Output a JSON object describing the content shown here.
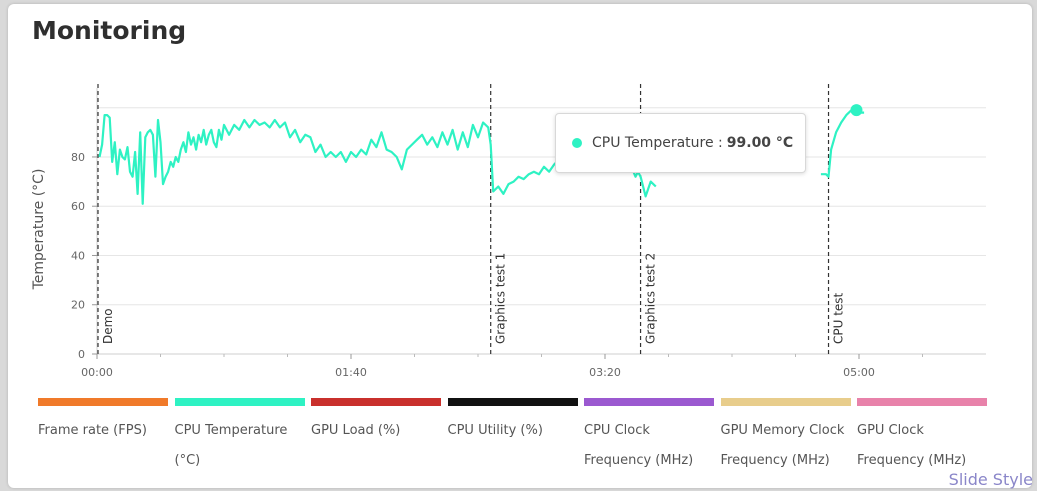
{
  "panel": {
    "title": "Monitoring"
  },
  "tooltip": {
    "label": "CPU Temperature :",
    "value": "99.00 °C",
    "color": "#2ef2c3"
  },
  "watermark": {
    "text": "Slide Style"
  },
  "legend": {
    "items": [
      {
        "label": "Frame rate (FPS)",
        "color": "#f07a2a"
      },
      {
        "label": "CPU Temperature (°C)",
        "color": "#2ef2c3"
      },
      {
        "label": "GPU Load (%)",
        "color": "#c9302c"
      },
      {
        "label": "CPU Utility (%)",
        "color": "#111111"
      },
      {
        "label": "CPU Clock Frequency (MHz)",
        "color": "#9b59d0"
      },
      {
        "label": "GPU Memory Clock Frequency (MHz)",
        "color": "#e8cd8c"
      },
      {
        "label": "GPU Clock Frequency (MHz)",
        "color": "#e882aa"
      }
    ]
  },
  "chart_data": {
    "type": "line",
    "ylabel": "Temperature (°C)",
    "xlabel": "",
    "ylim": [
      0,
      108
    ],
    "xlim": [
      0,
      350
    ],
    "y_ticks": [
      0,
      20,
      40,
      60,
      80
    ],
    "x_ticks": [
      {
        "value": 0,
        "label": "00:00"
      },
      {
        "value": 100,
        "label": "01:40"
      },
      {
        "value": 200,
        "label": "03:20"
      },
      {
        "value": 300,
        "label": "05:00"
      }
    ],
    "grid": true,
    "markers": [
      {
        "x": 0,
        "label": "Demo"
      },
      {
        "x": 155,
        "label": "Graphics test 1"
      },
      {
        "x": 214,
        "label": "Graphics test 2"
      },
      {
        "x": 288,
        "label": "CPU test"
      }
    ],
    "series": [
      {
        "name": "CPU Temperature (°C)",
        "color": "#2ef2c3",
        "points": [
          [
            1,
            80
          ],
          [
            2,
            85
          ],
          [
            3,
            97
          ],
          [
            4,
            97
          ],
          [
            5,
            96
          ],
          [
            6,
            78
          ],
          [
            7,
            86
          ],
          [
            8,
            73
          ],
          [
            9,
            83
          ],
          [
            10,
            80
          ],
          [
            11,
            79
          ],
          [
            12,
            84
          ],
          [
            13,
            74
          ],
          [
            14,
            72
          ],
          [
            15,
            82
          ],
          [
            16,
            65
          ],
          [
            17,
            90
          ],
          [
            18,
            61
          ],
          [
            19,
            88
          ],
          [
            20,
            90
          ],
          [
            21,
            91
          ],
          [
            22,
            89
          ],
          [
            23,
            72
          ],
          [
            24,
            95
          ],
          [
            25,
            86
          ],
          [
            26,
            69
          ],
          [
            27,
            72
          ],
          [
            28,
            74
          ],
          [
            29,
            78
          ],
          [
            30,
            76
          ],
          [
            31,
            80
          ],
          [
            32,
            78
          ],
          [
            33,
            83
          ],
          [
            34,
            86
          ],
          [
            35,
            82
          ],
          [
            36,
            90
          ],
          [
            37,
            85
          ],
          [
            38,
            88
          ],
          [
            39,
            83
          ],
          [
            40,
            89
          ],
          [
            41,
            86
          ],
          [
            42,
            91
          ],
          [
            43,
            85
          ],
          [
            44,
            89
          ],
          [
            45,
            91
          ],
          [
            46,
            86
          ],
          [
            47,
            84
          ],
          [
            48,
            91
          ],
          [
            49,
            87
          ],
          [
            50,
            93
          ],
          [
            52,
            89
          ],
          [
            54,
            93
          ],
          [
            56,
            91
          ],
          [
            58,
            95
          ],
          [
            60,
            92
          ],
          [
            62,
            95
          ],
          [
            64,
            93
          ],
          [
            66,
            94
          ],
          [
            68,
            92
          ],
          [
            70,
            95
          ],
          [
            72,
            92
          ],
          [
            74,
            94
          ],
          [
            76,
            88
          ],
          [
            78,
            91
          ],
          [
            80,
            86
          ],
          [
            82,
            89
          ],
          [
            84,
            88
          ],
          [
            86,
            82
          ],
          [
            88,
            85
          ],
          [
            90,
            80
          ],
          [
            92,
            82
          ],
          [
            94,
            80
          ],
          [
            96,
            82
          ],
          [
            98,
            78
          ],
          [
            100,
            82
          ],
          [
            102,
            80
          ],
          [
            104,
            83
          ],
          [
            106,
            81
          ],
          [
            108,
            87
          ],
          [
            110,
            84
          ],
          [
            112,
            90
          ],
          [
            114,
            83
          ],
          [
            116,
            82
          ],
          [
            118,
            80
          ],
          [
            120,
            75
          ],
          [
            122,
            83
          ],
          [
            124,
            85
          ],
          [
            126,
            87
          ],
          [
            128,
            89
          ],
          [
            130,
            85
          ],
          [
            132,
            88
          ],
          [
            134,
            84
          ],
          [
            136,
            90
          ],
          [
            138,
            85
          ],
          [
            140,
            91
          ],
          [
            142,
            83
          ],
          [
            144,
            90
          ],
          [
            146,
            84
          ],
          [
            148,
            93
          ],
          [
            150,
            88
          ],
          [
            152,
            94
          ],
          [
            154,
            92
          ],
          [
            155,
            85
          ],
          [
            156,
            66
          ],
          [
            158,
            68
          ],
          [
            160,
            65
          ],
          [
            162,
            69
          ],
          [
            164,
            70
          ],
          [
            166,
            72
          ],
          [
            168,
            71
          ],
          [
            170,
            73
          ],
          [
            172,
            74
          ],
          [
            174,
            73
          ],
          [
            176,
            76
          ],
          [
            178,
            74
          ],
          [
            180,
            77
          ],
          [
            182,
            79
          ],
          [
            184,
            78
          ],
          [
            186,
            80
          ],
          [
            188,
            82
          ],
          [
            210,
            77
          ],
          [
            212,
            72
          ],
          [
            213,
            74
          ],
          [
            214,
            72
          ],
          [
            216,
            64
          ],
          [
            218,
            70
          ],
          [
            220,
            68
          ],
          [
            285,
            73
          ],
          [
            287,
            73
          ],
          [
            288,
            72
          ],
          [
            289,
            83
          ],
          [
            291,
            90
          ],
          [
            293,
            94
          ],
          [
            295,
            97
          ],
          [
            297,
            99
          ],
          [
            299,
            99
          ],
          [
            301,
            98
          ],
          [
            302,
            98
          ]
        ]
      }
    ]
  }
}
